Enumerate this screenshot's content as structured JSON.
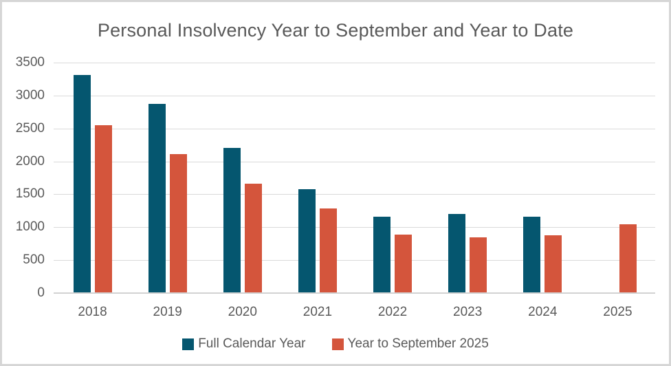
{
  "chart_data": {
    "type": "bar",
    "title": "Personal Insolvency Year to September and Year to Date",
    "categories": [
      "2018",
      "2019",
      "2020",
      "2021",
      "2022",
      "2023",
      "2024",
      "2025"
    ],
    "series": [
      {
        "name": "Full Calendar Year",
        "color": "#05566F",
        "values": [
          3300,
          2860,
          2190,
          1570,
          1150,
          1190,
          1150,
          null
        ]
      },
      {
        "name": "Year to September 2025",
        "color": "#D4553C",
        "values": [
          2540,
          2100,
          1650,
          1270,
          880,
          835,
          865,
          1030
        ]
      }
    ],
    "ylim": [
      0,
      3500
    ],
    "ytick_step": 500,
    "yticks": [
      "3500",
      "3000",
      "2500",
      "2000",
      "1500",
      "1000",
      "500",
      "0"
    ],
    "xlabel": "",
    "ylabel": "",
    "grid": true,
    "legend_position": "bottom"
  },
  "colors": {
    "gridline": "#d9d9d9",
    "baseline": "#d2d2d2",
    "axis_text": "#595959",
    "border": "#d6d6d6"
  }
}
